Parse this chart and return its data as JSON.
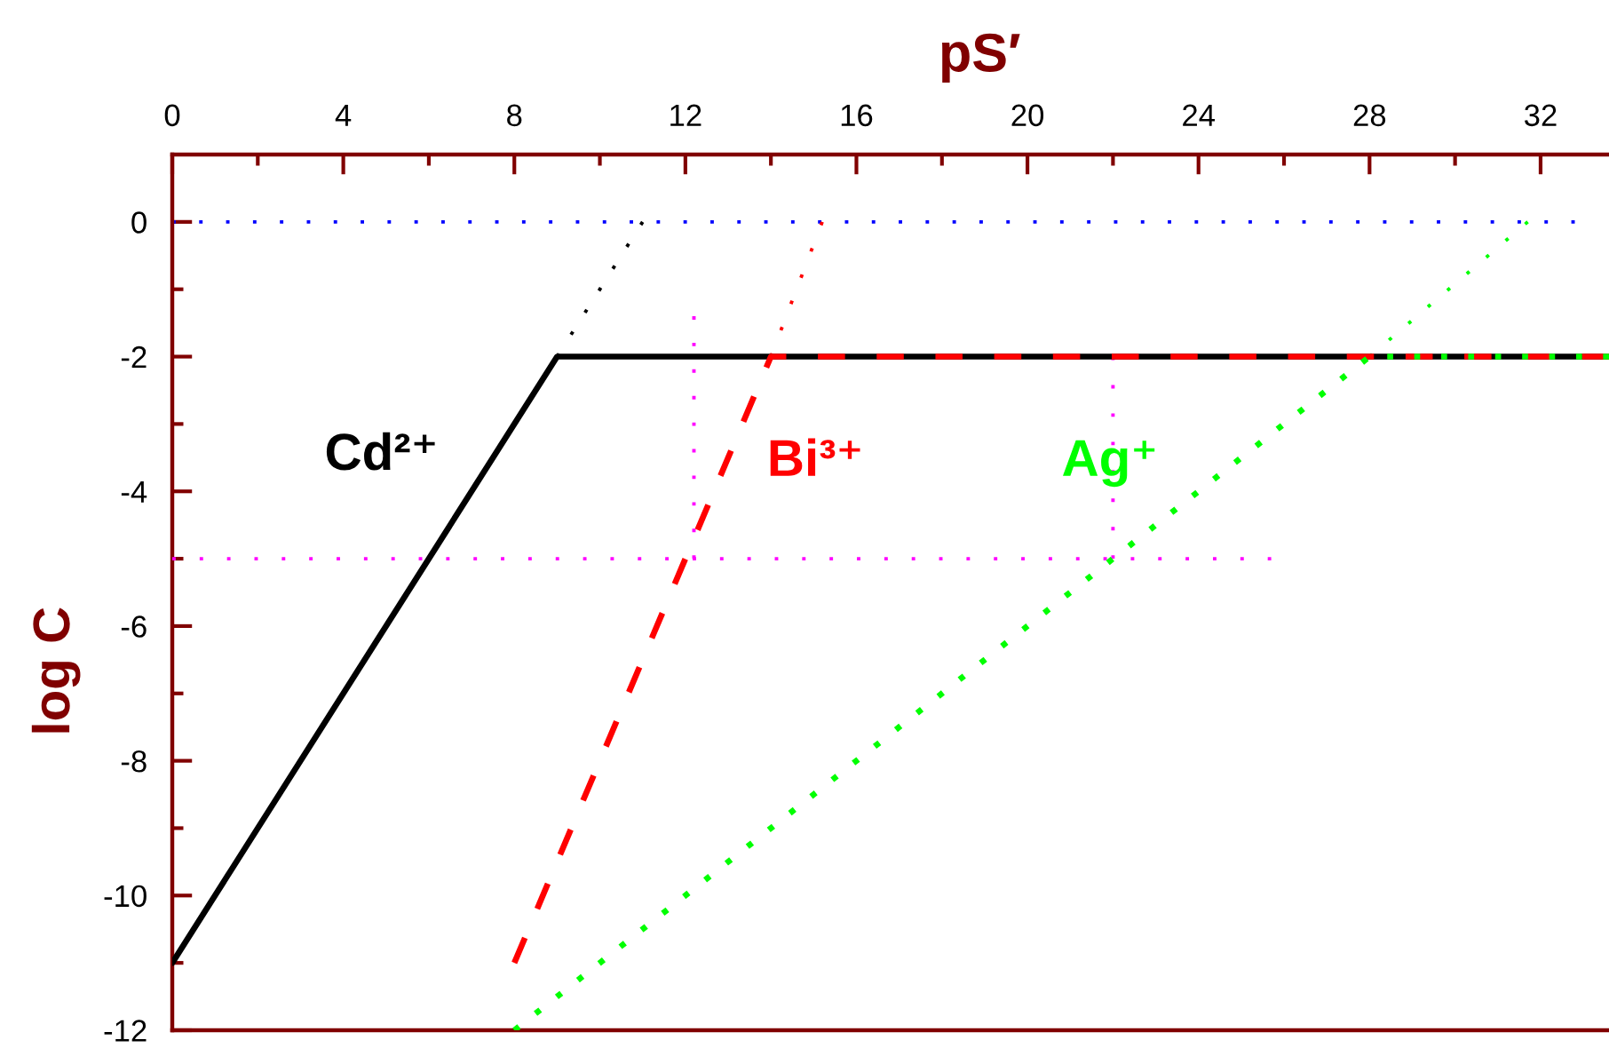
{
  "chart_data": {
    "type": "line",
    "xlabel": "pS′",
    "ylabel": "log C",
    "xlim": [
      0,
      33.6
    ],
    "ylim": [
      -12,
      1
    ],
    "xticks": [
      0,
      {
        "value": 2,
        "label": null
      },
      4,
      {
        "value": 6,
        "label": null
      },
      8,
      {
        "value": 10,
        "label": null
      },
      12,
      {
        "value": 14,
        "label": null
      },
      16,
      {
        "value": 18,
        "label": null
      },
      20,
      {
        "value": 22,
        "label": null
      },
      24,
      {
        "value": 26,
        "label": null
      },
      28,
      {
        "value": 30,
        "label": null
      },
      32
    ],
    "yticks": [
      -12,
      {
        "value": -11,
        "label": null
      },
      -10,
      {
        "value": -9,
        "label": null
      },
      -8,
      {
        "value": -7,
        "label": null
      },
      -6,
      {
        "value": -5,
        "label": null
      },
      -4,
      {
        "value": -3,
        "label": null
      },
      -2,
      {
        "value": -1,
        "label": null
      },
      0
    ],
    "series": [
      {
        "color": "#0000ff",
        "line_style": "dotted",
        "x": [
          0,
          32.8
        ],
        "values": [
          0,
          0
        ]
      },
      {
        "color": "#ff00ff",
        "line_style": "dotted",
        "x": [
          0,
          25.7
        ],
        "values": [
          -5,
          -5
        ]
      },
      {
        "color": "#ff00ff",
        "line_style": "dotted",
        "x": [
          12.2,
          12.2
        ],
        "values": [
          -5,
          -1.4
        ]
      },
      {
        "color": "#ff00ff",
        "line_style": "dotted",
        "x": [
          22,
          22
        ],
        "values": [
          -5,
          -2
        ]
      },
      {
        "color": "#000000",
        "line_style": "dotted",
        "x": [
          9,
          11
        ],
        "values": [
          -2,
          0
        ]
      },
      {
        "color": "#ff0000",
        "line_style": "dotted",
        "x": [
          14,
          15.2
        ],
        "values": [
          -2,
          0
        ]
      },
      {
        "color": "#00ff00",
        "line_style": "dotted",
        "x": [
          28,
          31.7
        ],
        "values": [
          -2,
          0
        ]
      },
      {
        "name": "Cd²⁺",
        "color": "#000000",
        "line_style": "solid",
        "x": [
          0,
          9,
          33.6
        ],
        "values": [
          -11,
          -2,
          -2
        ]
      },
      {
        "name": "Bi³⁺",
        "color": "#ff0000",
        "line_style": "dashed",
        "x": [
          8,
          14,
          33.6
        ],
        "values": [
          -11,
          -2,
          -2
        ]
      },
      {
        "name": "Ag⁺",
        "color": "#00ff00",
        "line_style": "dotted",
        "x": [
          8,
          28,
          33.6
        ],
        "values": [
          -12,
          -2,
          -2
        ]
      }
    ]
  }
}
